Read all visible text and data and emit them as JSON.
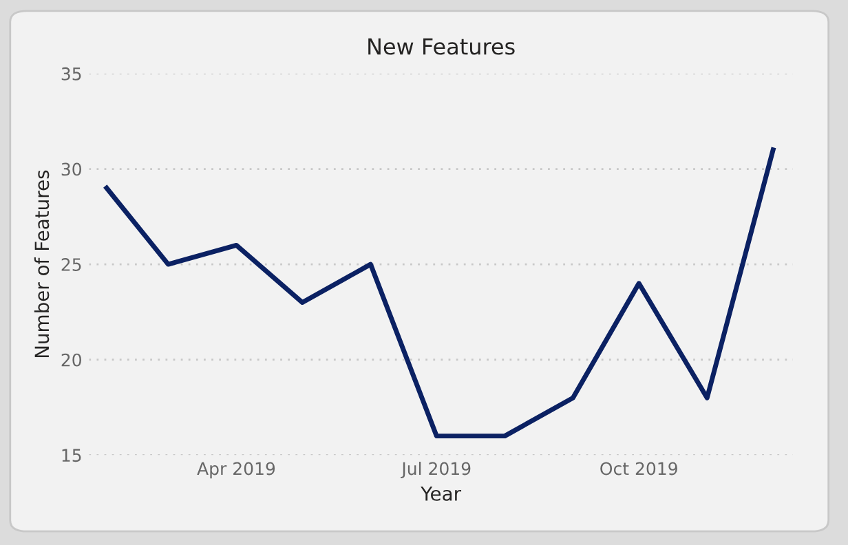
{
  "chart_data": {
    "type": "line",
    "title": "New Features",
    "xlabel": "Year",
    "ylabel": "Number of Features",
    "x": [
      "2019-02-01",
      "2019-03-01",
      "2019-04-01",
      "2019-05-01",
      "2019-06-01",
      "2019-07-01",
      "2019-08-01",
      "2019-09-01",
      "2019-10-01",
      "2019-11-01",
      "2019-12-01"
    ],
    "series": [
      {
        "color": "#0b2163",
        "values": [
          29,
          25,
          26,
          23,
          25,
          16,
          16,
          18,
          24,
          18,
          31
        ]
      }
    ],
    "xlim": [
      "2019-01-24",
      "2019-12-10"
    ],
    "xticks": [
      {
        "value": "2019-04-01",
        "label": "Apr 2019"
      },
      {
        "value": "2019-07-01",
        "label": "Jul 2019"
      },
      {
        "value": "2019-10-01",
        "label": "Oct 2019"
      }
    ],
    "ylim": [
      15,
      35
    ],
    "yticks": [
      15,
      20,
      25,
      30,
      35
    ],
    "grid": "y",
    "legend": false,
    "marker": "none",
    "line_style": "solid"
  }
}
